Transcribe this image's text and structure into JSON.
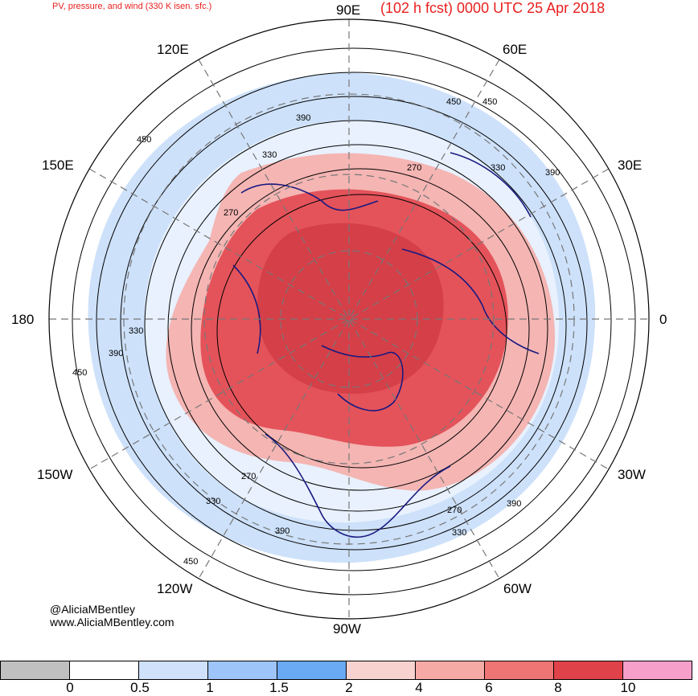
{
  "header": {
    "title_left": "PV, pressure, and wind (330 K isen. sfc.)",
    "title_right": "(102 h fcst) 0000 UTC 25 Apr 2018"
  },
  "map": {
    "projection": "north polar stereographic",
    "longitude_labels": {
      "top": "90E",
      "top_right": "60E",
      "right_upper": "30E",
      "right": "0",
      "right_lower": "30W",
      "bottom_right": "60W",
      "bottom": "90W",
      "bottom_left": "120W",
      "left_lower": "150W",
      "left": "180",
      "left_upper": "150E",
      "top_left": "120E"
    },
    "contour_labels": [
      "450",
      "390",
      "330",
      "270",
      "270",
      "330",
      "390",
      "450",
      "450",
      "390",
      "330",
      "270",
      "330",
      "390",
      "450",
      "270",
      "330",
      "390",
      "450"
    ],
    "colors": {
      "pv_high": "#e0424a",
      "pv_mid": "#f5a0a0",
      "pv_low": "#a3c8f5",
      "coastline": "#1a1a80",
      "contour": "#000000",
      "grid": "#777777"
    }
  },
  "credits": {
    "line1": "@AliciaMBentley",
    "line2": "www.AliciaMBentley.com"
  },
  "colorbar": {
    "labels": [
      "0",
      "0.5",
      "1",
      "1.5",
      "2",
      "4",
      "6",
      "8",
      "10"
    ],
    "colors": [
      "#c0c0c0",
      "#ffffff",
      "#cfe1fb",
      "#9ec5f9",
      "#6aa9f4",
      "#f7d2cf",
      "#f6aaa6",
      "#ef7474",
      "#e0424a",
      "#f59fca"
    ]
  }
}
